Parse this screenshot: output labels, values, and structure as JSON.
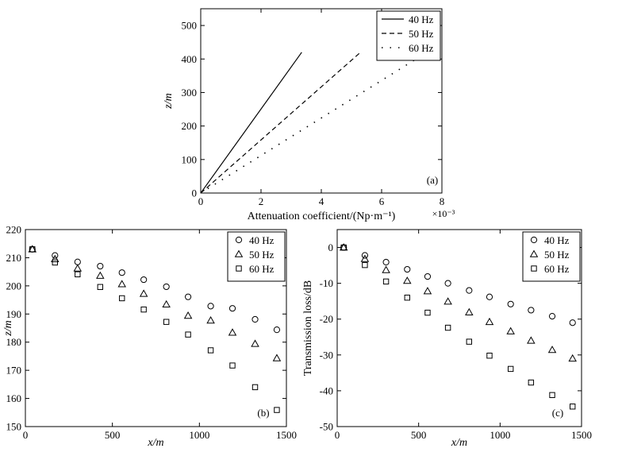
{
  "chart_data": [
    {
      "id": "a",
      "type": "line",
      "panel_label": "(a)",
      "xlabel": "Attenuation coefficient/(Np·m⁻¹)",
      "ylabel": "z/m",
      "x_multiplier": "×10⁻³",
      "xlim": [
        0,
        8
      ],
      "ylim": [
        0,
        550
      ],
      "xticks": [
        0,
        2,
        4,
        6,
        8
      ],
      "yticks": [
        0,
        100,
        200,
        300,
        400,
        500
      ],
      "grid": false,
      "legend_position": "top-right",
      "series": [
        {
          "name": "40 Hz",
          "style": "solid",
          "x": [
            0,
            3.35
          ],
          "y": [
            0,
            420
          ]
        },
        {
          "name": "50 Hz",
          "style": "dashed",
          "x": [
            0,
            5.3
          ],
          "y": [
            0,
            420
          ]
        },
        {
          "name": "60 Hz",
          "style": "dotted",
          "x": [
            0,
            7.5
          ],
          "y": [
            0,
            420
          ]
        }
      ]
    },
    {
      "id": "b",
      "type": "scatter",
      "panel_label": "(b)",
      "xlabel": "x/m",
      "ylabel": "z/m",
      "xlim": [
        0,
        1500
      ],
      "ylim": [
        150,
        220
      ],
      "xticks": [
        0,
        500,
        1000,
        1500
      ],
      "yticks": [
        150,
        160,
        170,
        180,
        190,
        200,
        210,
        220
      ],
      "grid": false,
      "legend_position": "top-right",
      "x": [
        40,
        170,
        300,
        430,
        555,
        680,
        810,
        935,
        1065,
        1190,
        1320,
        1445
      ],
      "series": [
        {
          "name": "40 Hz",
          "marker": "circle",
          "values": [
            213,
            210.8,
            208.5,
            207,
            204.7,
            202.2,
            199.7,
            196.1,
            192.8,
            192,
            188.1,
            184.4
          ]
        },
        {
          "name": "50 Hz",
          "marker": "triangle",
          "values": [
            213,
            209.5,
            206.2,
            203.6,
            200.6,
            197.2,
            193.4,
            189.4,
            187.7,
            183.4,
            179.4,
            174.3
          ]
        },
        {
          "name": "60 Hz",
          "marker": "square",
          "values": [
            213,
            208.3,
            204.1,
            199.6,
            195.6,
            191.6,
            187.2,
            182.7,
            177.1,
            171.7,
            164,
            155.9
          ]
        }
      ]
    },
    {
      "id": "c",
      "type": "scatter",
      "panel_label": "(c)",
      "xlabel": "x/m",
      "ylabel": "Transmission loss/dB",
      "xlim": [
        0,
        1500
      ],
      "ylim": [
        -50,
        5
      ],
      "xticks": [
        0,
        500,
        1000,
        1500
      ],
      "yticks": [
        -50,
        -40,
        -30,
        -20,
        -10,
        0
      ],
      "grid": false,
      "legend_position": "top-right",
      "x": [
        40,
        170,
        300,
        430,
        555,
        680,
        810,
        935,
        1065,
        1190,
        1320,
        1445
      ],
      "series": [
        {
          "name": "40 Hz",
          "marker": "circle",
          "values": [
            0,
            -2.2,
            -4.1,
            -6.1,
            -8.1,
            -10,
            -12,
            -13.8,
            -15.8,
            -17.5,
            -19.2,
            -21
          ]
        },
        {
          "name": "50 Hz",
          "marker": "triangle",
          "values": [
            0,
            -3.2,
            -6.3,
            -9.3,
            -12.2,
            -15.1,
            -18.1,
            -20.8,
            -23.4,
            -26,
            -28.6,
            -31
          ]
        },
        {
          "name": "60 Hz",
          "marker": "square",
          "values": [
            0,
            -4.9,
            -9.5,
            -14,
            -18.2,
            -22.4,
            -26.3,
            -30.2,
            -33.9,
            -37.7,
            -41.2,
            -44.4
          ]
        }
      ]
    }
  ]
}
